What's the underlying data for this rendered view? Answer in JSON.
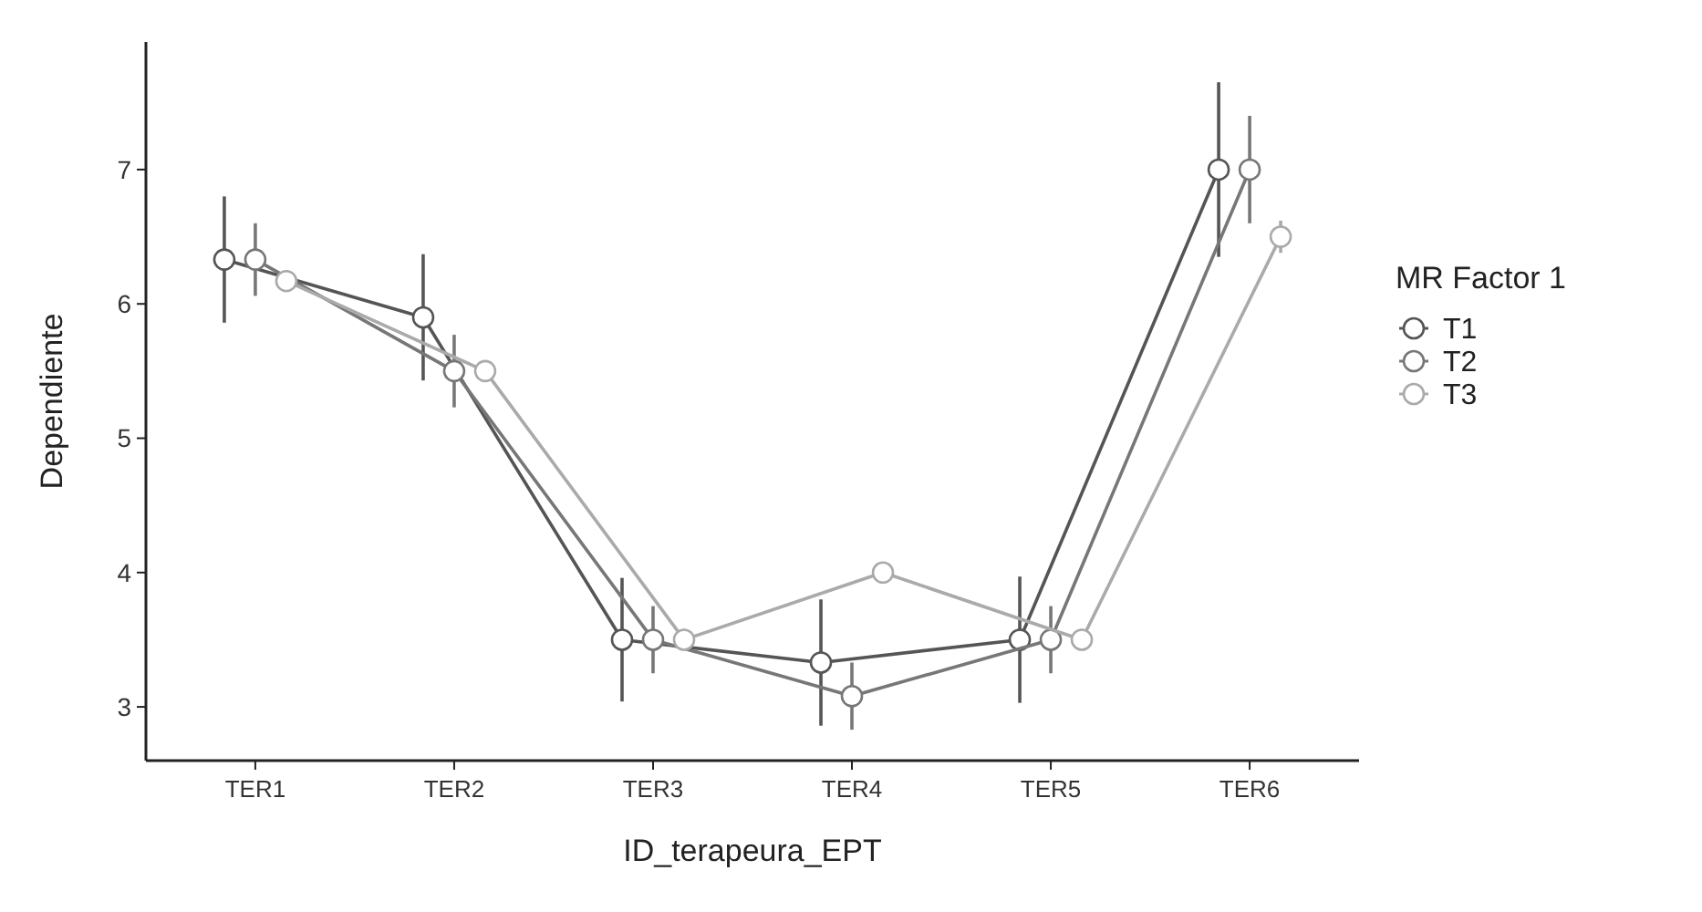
{
  "chart_data": {
    "type": "line",
    "xlabel": "ID_terapeura_EPT",
    "ylabel": "Dependiente",
    "legend_title": "MR Factor 1",
    "categories": [
      "TER1",
      "TER2",
      "TER3",
      "TER4",
      "TER5",
      "TER6"
    ],
    "series": [
      {
        "name": "T1",
        "color": "#555555",
        "values": [
          6.33,
          5.9,
          3.5,
          3.33,
          3.5,
          7.0
        ],
        "errors": [
          0.47,
          0.47,
          0.46,
          0.47,
          0.47,
          0.65
        ]
      },
      {
        "name": "T2",
        "color": "#777777",
        "values": [
          6.33,
          5.5,
          3.5,
          3.08,
          3.5,
          7.0
        ],
        "errors": [
          0.27,
          0.27,
          0.25,
          0.25,
          0.25,
          0.4
        ]
      },
      {
        "name": "T3",
        "color": "#aaaaaa",
        "values": [
          6.17,
          5.5,
          3.5,
          4.0,
          3.5,
          6.5
        ],
        "errors": [
          0.08,
          0.08,
          0.08,
          0.08,
          0.08,
          0.12
        ]
      }
    ],
    "ylim": [
      2.6,
      7.95
    ],
    "yticks": [
      3,
      4,
      5,
      6,
      7
    ],
    "grid": false,
    "legend": "right",
    "marker": "circle",
    "line_style": "solid"
  }
}
